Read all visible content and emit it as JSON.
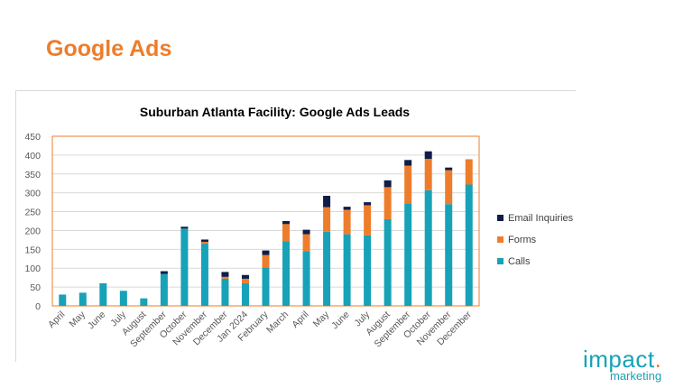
{
  "slide": {
    "title": "Google Ads",
    "logo": {
      "name": "impact.",
      "sub": "marketing"
    }
  },
  "chart_data": {
    "type": "bar",
    "stacked": true,
    "title": "Suburban Atlanta Facility: Google Ads Leads",
    "xlabel": "",
    "ylabel": "",
    "ylim": [
      0,
      450
    ],
    "yticks": [
      0,
      50,
      100,
      150,
      200,
      250,
      300,
      350,
      400,
      450
    ],
    "grid": true,
    "legend_position": "right",
    "categories": [
      "April",
      "May",
      "June",
      "July",
      "August",
      "September",
      "October",
      "November",
      "December",
      "Jan 2024",
      "February",
      "March",
      "April",
      "May",
      "June",
      "July",
      "August",
      "September",
      "October",
      "November",
      "December"
    ],
    "series": [
      {
        "name": "Calls",
        "color": "#17a2b8",
        "values": [
          30,
          35,
          60,
          40,
          20,
          85,
          205,
          165,
          72,
          60,
          102,
          172,
          145,
          197,
          190,
          187,
          230,
          272,
          307,
          270,
          322
        ]
      },
      {
        "name": "Forms",
        "color": "#ee7d2b",
        "values": [
          0,
          0,
          0,
          0,
          0,
          0,
          0,
          5,
          5,
          12,
          33,
          45,
          45,
          65,
          65,
          80,
          85,
          100,
          83,
          90,
          67
        ]
      },
      {
        "name": "Email Inquiries",
        "color": "#0f1d4a",
        "values": [
          0,
          0,
          0,
          0,
          0,
          7,
          5,
          6,
          13,
          10,
          12,
          8,
          12,
          30,
          8,
          8,
          18,
          15,
          20,
          7,
          0
        ]
      }
    ],
    "legend_order": [
      "Email Inquiries",
      "Forms",
      "Calls"
    ]
  }
}
